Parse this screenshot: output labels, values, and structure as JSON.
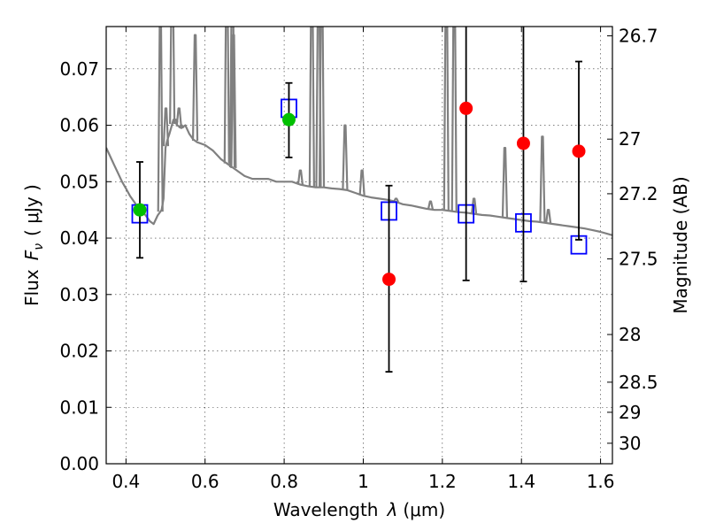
{
  "chart_data": {
    "type": "scatter",
    "title": "",
    "xlabel_prefix": "Wavelength",
    "xlabel_symbol": "λ",
    "xlabel_unit": "(μm)",
    "ylabel_prefix": "Flux",
    "ylabel_symbol": "F",
    "ylabel_sub": "ν",
    "ylabel_unit": "( μJy )",
    "y2label": "Magnitude (AB)",
    "xlim": [
      0.35,
      1.63
    ],
    "ylim": [
      0.0,
      0.0775
    ],
    "grid": true,
    "x_ticks": [
      0.4,
      0.6,
      0.8,
      1.0,
      1.2,
      1.4,
      1.6
    ],
    "x_tick_labels": [
      "0.4",
      "0.6",
      "0.8",
      "1",
      "1.2",
      "1.4",
      "1.6"
    ],
    "y_ticks": [
      0.0,
      0.01,
      0.02,
      0.03,
      0.04,
      0.05,
      0.06,
      0.07
    ],
    "y_tick_labels": [
      "0.00",
      "0.01",
      "0.02",
      "0.03",
      "0.04",
      "0.05",
      "0.06",
      "0.07"
    ],
    "y2_ticks": [
      {
        "label": "26.7",
        "mag": 26.7
      },
      {
        "label": "27",
        "mag": 27.0
      },
      {
        "label": "27.2",
        "mag": 27.2
      },
      {
        "label": "27.5",
        "mag": 27.5
      },
      {
        "label": "28",
        "mag": 28.0
      },
      {
        "label": "28.5",
        "mag": 28.5
      },
      {
        "label": "29",
        "mag": 29.0
      },
      {
        "label": "30",
        "mag": 30.0
      }
    ],
    "series": [
      {
        "name": "model spectrum",
        "kind": "line",
        "color": "#808080",
        "x": [
          0.35,
          0.36,
          0.37,
          0.38,
          0.39,
          0.4,
          0.41,
          0.42,
          0.43,
          0.44,
          0.45,
          0.46,
          0.47,
          0.48,
          0.49,
          0.495,
          0.5,
          0.505,
          0.51,
          0.52,
          0.53,
          0.54,
          0.55,
          0.56,
          0.57,
          0.58,
          0.6,
          0.62,
          0.64,
          0.66,
          0.68,
          0.7,
          0.72,
          0.74,
          0.76,
          0.78,
          0.8,
          0.82,
          0.84,
          0.86,
          0.88,
          0.9,
          0.92,
          0.94,
          0.96,
          0.98,
          1.0,
          1.02,
          1.04,
          1.06,
          1.08,
          1.1,
          1.12,
          1.14,
          1.16,
          1.18,
          1.2,
          1.22,
          1.24,
          1.26,
          1.28,
          1.3,
          1.32,
          1.34,
          1.36,
          1.38,
          1.4,
          1.42,
          1.44,
          1.46,
          1.48,
          1.5,
          1.52,
          1.54,
          1.56,
          1.58,
          1.6,
          1.63
        ],
        "y": [
          0.056,
          0.0545,
          0.053,
          0.0515,
          0.05,
          0.0488,
          0.0475,
          0.0465,
          0.0455,
          0.0448,
          0.044,
          0.043,
          0.0425,
          0.044,
          0.045,
          0.047,
          0.056,
          0.0575,
          0.0585,
          0.061,
          0.06,
          0.0595,
          0.06,
          0.0585,
          0.0575,
          0.057,
          0.0565,
          0.0555,
          0.054,
          0.053,
          0.052,
          0.051,
          0.0505,
          0.0505,
          0.0505,
          0.05,
          0.05,
          0.05,
          0.0495,
          0.0492,
          0.049,
          0.049,
          0.0488,
          0.0487,
          0.0485,
          0.048,
          0.0475,
          0.0472,
          0.047,
          0.0468,
          0.0465,
          0.046,
          0.0458,
          0.0455,
          0.0452,
          0.045,
          0.045,
          0.0448,
          0.0446,
          0.0445,
          0.0443,
          0.0441,
          0.044,
          0.0438,
          0.0436,
          0.0434,
          0.0432,
          0.043,
          0.0429,
          0.0427,
          0.0425,
          0.0423,
          0.0421,
          0.0419,
          0.0417,
          0.0414,
          0.0411,
          0.0405
        ]
      },
      {
        "name": "emission lines",
        "kind": "spikes",
        "color": "#808080",
        "lines": [
          {
            "x": 0.487,
            "y": 0.081
          },
          {
            "x": 0.501,
            "y": 0.063
          },
          {
            "x": 0.517,
            "y": 0.088
          },
          {
            "x": 0.525,
            "y": 0.061
          },
          {
            "x": 0.534,
            "y": 0.063
          },
          {
            "x": 0.54,
            "y": 0.06
          },
          {
            "x": 0.575,
            "y": 0.076
          },
          {
            "x": 0.655,
            "y": 0.088
          },
          {
            "x": 0.669,
            "y": 0.088
          },
          {
            "x": 0.672,
            "y": 0.076
          },
          {
            "x": 0.841,
            "y": 0.052
          },
          {
            "x": 0.87,
            "y": 0.088
          },
          {
            "x": 0.887,
            "y": 0.088
          },
          {
            "x": 0.895,
            "y": 0.088
          },
          {
            "x": 0.954,
            "y": 0.06
          },
          {
            "x": 0.997,
            "y": 0.052
          },
          {
            "x": 1.083,
            "y": 0.047
          },
          {
            "x": 1.17,
            "y": 0.0465
          },
          {
            "x": 1.21,
            "y": 0.088
          },
          {
            "x": 1.23,
            "y": 0.088
          },
          {
            "x": 1.28,
            "y": 0.047
          },
          {
            "x": 1.358,
            "y": 0.056
          },
          {
            "x": 1.453,
            "y": 0.058
          },
          {
            "x": 1.468,
            "y": 0.045
          }
        ]
      },
      {
        "name": "model photometry",
        "kind": "squares",
        "color": "#0000ff",
        "x": [
          0.435,
          0.812,
          1.065,
          1.26,
          1.405,
          1.545
        ],
        "y": [
          0.0443,
          0.063,
          0.0448,
          0.0443,
          0.0427,
          0.0388
        ]
      },
      {
        "name": "detections",
        "kind": "points",
        "color": "#00c000",
        "x": [
          0.435,
          0.812
        ],
        "y": [
          0.045,
          0.061
        ],
        "yerr_low": [
          0.0365,
          0.0543
        ],
        "yerr_high": [
          0.0535,
          0.0675
        ]
      },
      {
        "name": "upper limits / low S/N",
        "kind": "points",
        "color": "#ff0000",
        "x": [
          1.065,
          1.26,
          1.405,
          1.545
        ],
        "y": [
          0.0327,
          0.063,
          0.0568,
          0.0554
        ],
        "yerr_low": [
          0.0163,
          0.0325,
          0.0323,
          0.0397
        ],
        "yerr_high": [
          0.0493,
          0.08,
          0.08,
          0.0713
        ]
      }
    ]
  }
}
